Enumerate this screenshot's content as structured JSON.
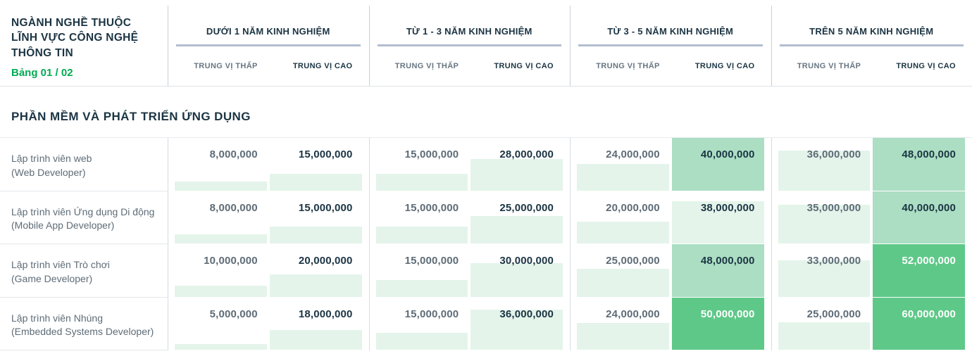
{
  "page": {
    "title": "NGÀNH NGHỀ THUỘC LĨNH VỰC CÔNG NGHỆ THÔNG TIN",
    "table_badge": "Bảng 01 / 02",
    "section_title": "PHẦN MỀM VÀ PHÁT TRIỂN ỨNG DỤNG"
  },
  "colors": {
    "accent_green": "#00ab52",
    "heat_light": "#e4f4ea",
    "heat_medium": "#abdec3",
    "heat_dark": "#5ec888",
    "text_dark": "#1b3443",
    "text_gray": "#5e6c77"
  },
  "chart_data": {
    "type": "table",
    "title": "NGÀNH NGHỀ THUỘC LĨNH VỰC CÔNG NGHỆ THÔNG TIN",
    "page_label": "Bảng 01 / 02",
    "section": "PHẦN MỀM VÀ PHÁT TRIỂN ỨNG DỤNG",
    "column_groups": [
      "DƯỚI 1 NĂM KINH NGHIỆM",
      "TỪ 1 - 3 NĂM KINH NGHIỆM",
      "TỪ 3 - 5 NĂM KINH NGHIỆM",
      "TRÊN 5 NĂM KINH NGHIỆM"
    ],
    "subcolumns": [
      "TRUNG VỊ THẤP",
      "TRUNG VỊ CAO"
    ],
    "heat_scale_max": 48000000,
    "heat_tiers": {
      "medium_from": 40000000,
      "dark_from": 50000000
    },
    "rows": [
      {
        "label_vi": "Lập trình viên web",
        "label_en": "(Web Developer)",
        "values": [
          8000000,
          15000000,
          15000000,
          28000000,
          24000000,
          40000000,
          36000000,
          48000000
        ]
      },
      {
        "label_vi": "Lập trình viên Ứng dụng Di động",
        "label_en": "(Mobile App Developer)",
        "values": [
          8000000,
          15000000,
          15000000,
          25000000,
          20000000,
          38000000,
          35000000,
          40000000
        ]
      },
      {
        "label_vi": "Lập trình viên Trò chơi",
        "label_en": "(Game Developer)",
        "values": [
          10000000,
          20000000,
          15000000,
          30000000,
          25000000,
          48000000,
          33000000,
          52000000
        ]
      },
      {
        "label_vi": "Lập trình viên Nhúng",
        "label_en": "(Embedded Systems Developer)",
        "values": [
          5000000,
          18000000,
          15000000,
          36000000,
          24000000,
          50000000,
          25000000,
          60000000
        ]
      }
    ]
  }
}
